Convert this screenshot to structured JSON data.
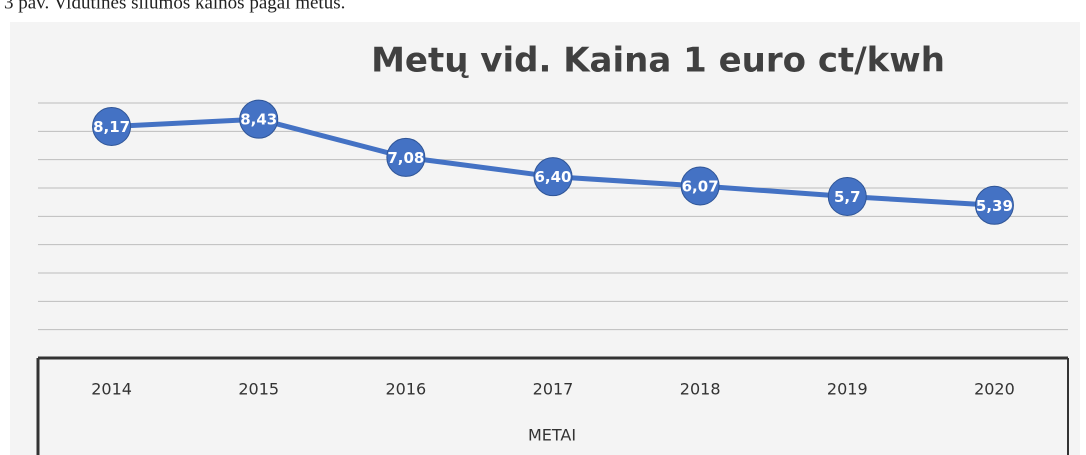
{
  "caption": "3 pav. Vidutinės šilumos kainos pagal metus.",
  "chart_data": {
    "type": "line",
    "title": "Metų vid. Kaina 1 euro ct/kwh",
    "xlabel": "METAI",
    "categories": [
      "2014",
      "2015",
      "2016",
      "2017",
      "2018",
      "2019",
      "2020"
    ],
    "values": [
      8.17,
      8.43,
      7.08,
      6.4,
      6.07,
      5.7,
      5.39
    ],
    "value_labels": [
      "8,17",
      "8,43",
      "7,08",
      "6,40",
      "6,07",
      "5,7",
      "5,39"
    ],
    "color": "#4472c4",
    "ylim": [
      0,
      12
    ],
    "yticks": [
      0,
      1,
      2,
      3,
      4,
      5,
      6,
      7,
      8,
      9,
      10,
      11,
      12
    ],
    "grid": true
  }
}
